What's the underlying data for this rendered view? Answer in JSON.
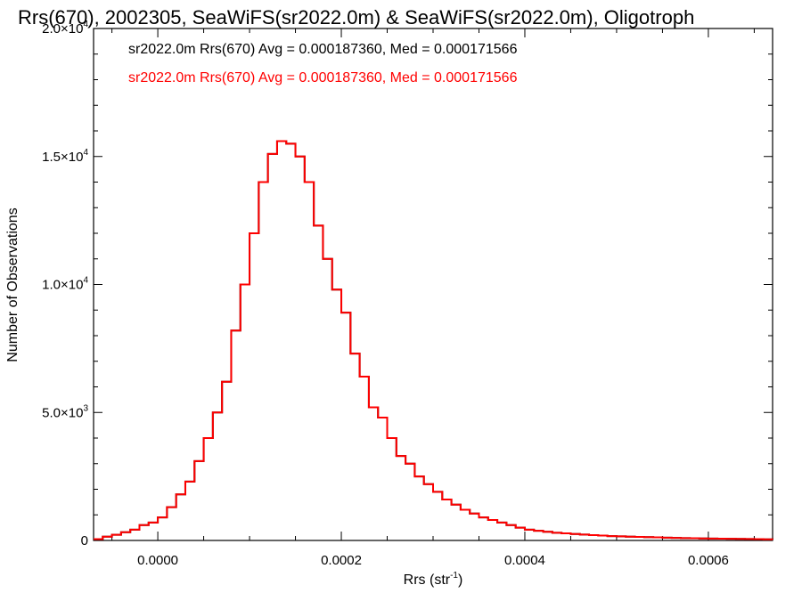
{
  "chart_data": {
    "type": "histogram",
    "title": "Rrs(670), 2002305, SeaWiFS(sr2022.0m) & SeaWiFS(sr2022.0m), Oligotroph",
    "xlabel": "Rrs (str",
    "xlabel_sup": "-1",
    "xlabel_end": ")",
    "ylabel": "Number of Observations",
    "xlim": [
      -7e-05,
      0.00067
    ],
    "ylim": [
      0,
      20000
    ],
    "x_ticks": [
      {
        "value": 0.0,
        "label": "0.0000"
      },
      {
        "value": 0.0002,
        "label": "0.0002"
      },
      {
        "value": 0.0004,
        "label": "0.0004"
      },
      {
        "value": 0.0006,
        "label": "0.0006"
      }
    ],
    "y_ticks": [
      {
        "value": 0,
        "mant": "0",
        "exp": ""
      },
      {
        "value": 5000,
        "mant": "5.0×10",
        "exp": "3"
      },
      {
        "value": 10000,
        "mant": "1.0×10",
        "exp": "4"
      },
      {
        "value": 15000,
        "mant": "1.5×10",
        "exp": "4"
      },
      {
        "value": 20000,
        "mant": "2.0×10",
        "exp": "4"
      }
    ],
    "legend": [
      {
        "text": "sr2022.0m Rrs(670) Avg = 0.000187360, Med = 0.000171566",
        "color": "#000000"
      },
      {
        "text": "sr2022.0m Rrs(670) Avg = 0.000187360, Med = 0.000171566",
        "color": "#ff0000"
      }
    ],
    "series": [
      {
        "color": "#000000"
      },
      {
        "color": "#ff0000"
      }
    ],
    "bins": {
      "x": [
        -7e-05,
        -6e-05,
        -5e-05,
        -4e-05,
        -3e-05,
        -2e-05,
        -1e-05,
        0.0,
        1e-05,
        2e-05,
        3e-05,
        4e-05,
        5e-05,
        6e-05,
        7e-05,
        8e-05,
        9e-05,
        0.0001,
        0.00011,
        0.00012,
        0.00013,
        0.00014,
        0.00015,
        0.00016,
        0.00017,
        0.00018,
        0.00019,
        0.0002,
        0.00021,
        0.00022,
        0.00023,
        0.00024,
        0.00025,
        0.00026,
        0.00027,
        0.00028,
        0.00029,
        0.0003,
        0.00031,
        0.00032,
        0.00033,
        0.00034,
        0.00035,
        0.00036,
        0.00037,
        0.00038,
        0.00039,
        0.0004,
        0.00041,
        0.00042,
        0.00043,
        0.00044,
        0.00045,
        0.00046,
        0.00047,
        0.00048,
        0.00049,
        0.0005,
        0.00051,
        0.00052,
        0.00053,
        0.00054,
        0.00055,
        0.00056,
        0.00057,
        0.00058,
        0.00059,
        0.0006,
        0.00061,
        0.00062,
        0.00063,
        0.00064,
        0.00065,
        0.00066,
        0.00067
      ],
      "y": [
        50,
        150,
        220,
        320,
        420,
        600,
        700,
        900,
        1300,
        1800,
        2300,
        3100,
        4000,
        5000,
        6200,
        8200,
        10000,
        12000,
        14000,
        15100,
        15600,
        15500,
        15000,
        14000,
        12300,
        11000,
        9800,
        8900,
        7300,
        6400,
        5200,
        4800,
        4000,
        3300,
        3000,
        2500,
        2200,
        1900,
        1600,
        1400,
        1200,
        1050,
        900,
        800,
        700,
        600,
        500,
        420,
        380,
        340,
        300,
        280,
        250,
        230,
        210,
        190,
        170,
        160,
        150,
        140,
        130,
        120,
        110,
        100,
        90,
        85,
        80,
        75,
        70,
        65,
        60,
        55,
        50,
        45,
        40
      ]
    }
  }
}
